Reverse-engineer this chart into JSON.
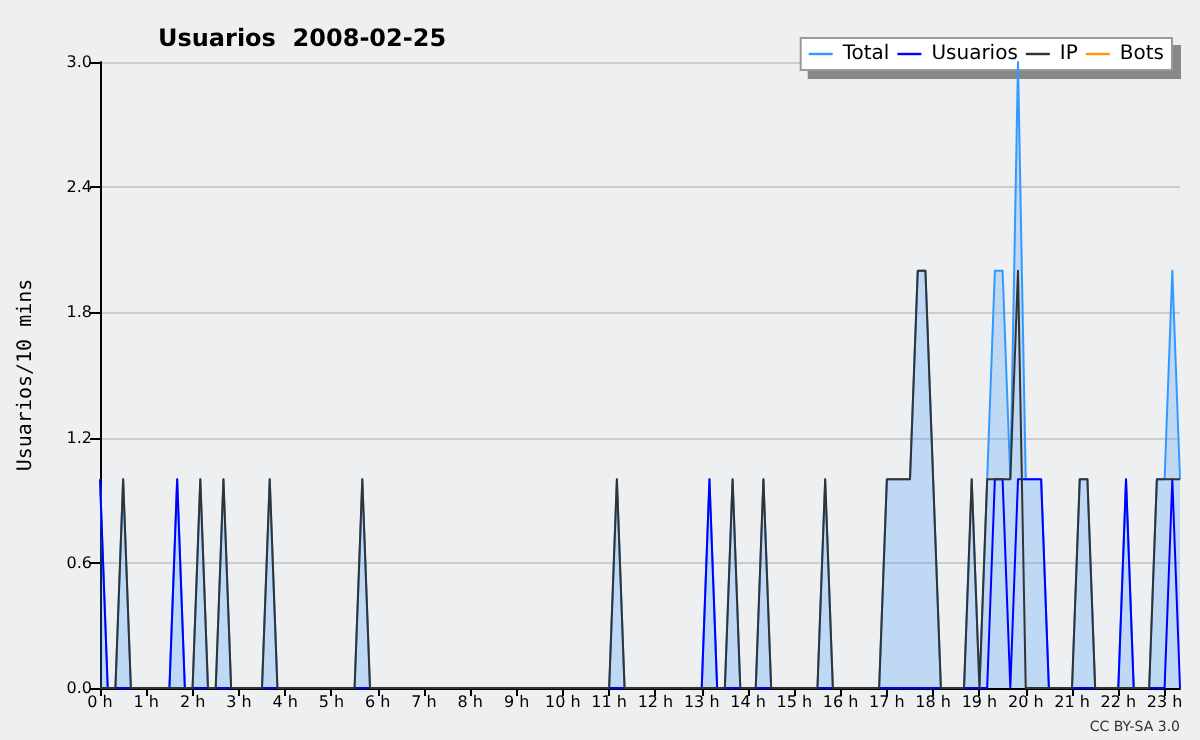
{
  "chart_data": {
    "type": "line",
    "title": "Usuarios  2008-02-25",
    "ylabel": "Usuarios/10 mins",
    "x": [
      0,
      0.167,
      0.333,
      0.5,
      0.667,
      0.833,
      1,
      1.167,
      1.333,
      1.5,
      1.667,
      1.833,
      2,
      2.167,
      2.333,
      2.5,
      2.667,
      2.833,
      3,
      3.167,
      3.333,
      3.5,
      3.667,
      3.833,
      4,
      4.167,
      4.333,
      4.5,
      4.667,
      4.833,
      5,
      5.167,
      5.333,
      5.5,
      5.667,
      5.833,
      6,
      6.167,
      6.333,
      6.5,
      6.667,
      6.833,
      7,
      7.167,
      7.333,
      7.5,
      7.667,
      7.833,
      8,
      8.167,
      8.333,
      8.5,
      8.667,
      8.833,
      9,
      9.167,
      9.333,
      9.5,
      9.667,
      9.833,
      10,
      10.167,
      10.333,
      10.5,
      10.667,
      10.833,
      11,
      11.167,
      11.333,
      11.5,
      11.667,
      11.833,
      12,
      12.167,
      12.333,
      12.5,
      12.667,
      12.833,
      13,
      13.167,
      13.333,
      13.5,
      13.667,
      13.833,
      14,
      14.167,
      14.333,
      14.5,
      14.667,
      14.833,
      15,
      15.167,
      15.333,
      15.5,
      15.667,
      15.833,
      16,
      16.167,
      16.333,
      16.5,
      16.667,
      16.833,
      17,
      17.167,
      17.333,
      17.5,
      17.667,
      17.833,
      18,
      18.167,
      18.333,
      18.5,
      18.667,
      18.833,
      19,
      19.167,
      19.333,
      19.5,
      19.667,
      19.833,
      20,
      20.167,
      20.333,
      20.5,
      20.667,
      20.833,
      21,
      21.167,
      21.333,
      21.5,
      21.667,
      21.833,
      22,
      22.167,
      22.333,
      22.5,
      22.667,
      22.833,
      23,
      23.167,
      23.333
    ],
    "series": [
      {
        "name": "Total",
        "type": "area",
        "color": "#3399ff",
        "values": [
          1,
          0,
          0,
          1,
          0,
          0,
          0,
          0,
          0,
          0,
          1,
          0,
          0,
          1,
          0,
          0,
          1,
          0,
          0,
          0,
          0,
          0,
          1,
          0,
          0,
          0,
          0,
          0,
          0,
          0,
          0,
          0,
          0,
          0,
          1,
          0,
          0,
          0,
          0,
          0,
          0,
          0,
          0,
          0,
          0,
          0,
          0,
          0,
          0,
          0,
          0,
          0,
          0,
          0,
          0,
          0,
          0,
          0,
          0,
          0,
          0,
          0,
          0,
          0,
          0,
          0,
          0,
          1,
          0,
          0,
          0,
          0,
          0,
          0,
          0,
          0,
          0,
          0,
          0,
          1,
          0,
          0,
          1,
          0,
          0,
          0,
          1,
          0,
          0,
          0,
          0,
          0,
          0,
          0,
          1,
          0,
          0,
          0,
          0,
          0,
          0,
          0,
          1,
          1,
          1,
          1,
          2,
          2,
          1,
          0,
          0,
          0,
          0,
          1,
          0,
          1,
          2,
          2,
          1,
          3,
          1,
          1,
          1,
          0,
          0,
          0,
          0,
          1,
          1,
          0,
          0,
          0,
          0,
          1,
          0,
          0,
          0,
          1,
          1,
          2,
          1
        ]
      },
      {
        "name": "Usuarios",
        "color": "#0000ff",
        "values": [
          1,
          0,
          0,
          0,
          0,
          0,
          0,
          0,
          0,
          0,
          1,
          0,
          0,
          0,
          0,
          0,
          0,
          0,
          0,
          0,
          0,
          0,
          0,
          0,
          0,
          0,
          0,
          0,
          0,
          0,
          0,
          0,
          0,
          0,
          0,
          0,
          0,
          0,
          0,
          0,
          0,
          0,
          0,
          0,
          0,
          0,
          0,
          0,
          0,
          0,
          0,
          0,
          0,
          0,
          0,
          0,
          0,
          0,
          0,
          0,
          0,
          0,
          0,
          0,
          0,
          0,
          0,
          0,
          0,
          0,
          0,
          0,
          0,
          0,
          0,
          0,
          0,
          0,
          0,
          1,
          0,
          0,
          0,
          0,
          0,
          0,
          0,
          0,
          0,
          0,
          0,
          0,
          0,
          0,
          0,
          0,
          0,
          0,
          0,
          0,
          0,
          0,
          0,
          0,
          0,
          0,
          0,
          0,
          0,
          0,
          0,
          0,
          0,
          0,
          0,
          0,
          1,
          1,
          0,
          1,
          1,
          1,
          1,
          0,
          0,
          0,
          0,
          0,
          0,
          0,
          0,
          0,
          0,
          1,
          0,
          0,
          0,
          0,
          0,
          1,
          0
        ]
      },
      {
        "name": "IP",
        "color": "#333333",
        "values": [
          0,
          0,
          0,
          1,
          0,
          0,
          0,
          0,
          0,
          0,
          0,
          0,
          0,
          1,
          0,
          0,
          1,
          0,
          0,
          0,
          0,
          0,
          1,
          0,
          0,
          0,
          0,
          0,
          0,
          0,
          0,
          0,
          0,
          0,
          1,
          0,
          0,
          0,
          0,
          0,
          0,
          0,
          0,
          0,
          0,
          0,
          0,
          0,
          0,
          0,
          0,
          0,
          0,
          0,
          0,
          0,
          0,
          0,
          0,
          0,
          0,
          0,
          0,
          0,
          0,
          0,
          0,
          1,
          0,
          0,
          0,
          0,
          0,
          0,
          0,
          0,
          0,
          0,
          0,
          0,
          0,
          0,
          1,
          0,
          0,
          0,
          1,
          0,
          0,
          0,
          0,
          0,
          0,
          0,
          1,
          0,
          0,
          0,
          0,
          0,
          0,
          0,
          1,
          1,
          1,
          1,
          2,
          2,
          1,
          0,
          0,
          0,
          0,
          1,
          0,
          1,
          1,
          1,
          1,
          2,
          0,
          0,
          0,
          0,
          0,
          0,
          0,
          1,
          1,
          0,
          0,
          0,
          0,
          0,
          0,
          0,
          0,
          1,
          1,
          1,
          1
        ]
      },
      {
        "name": "Bots",
        "color": "#ff9900",
        "values": [
          null,
          null,
          null,
          null,
          null,
          null,
          null,
          null,
          null,
          null,
          null,
          null,
          null,
          null,
          null,
          null,
          null,
          null,
          null,
          null,
          null,
          null,
          null,
          null,
          null,
          null,
          null,
          null,
          null,
          null,
          null,
          null,
          null,
          null,
          null,
          null,
          null,
          null,
          null,
          null,
          null,
          null,
          null,
          null,
          null,
          null,
          null,
          null,
          null,
          null,
          null,
          null,
          null,
          null,
          null,
          null,
          null,
          null,
          null,
          null,
          null,
          null,
          null,
          null,
          null,
          null,
          null,
          null,
          null,
          null,
          null,
          null,
          null,
          null,
          null,
          null,
          null,
          null,
          null,
          null,
          null,
          null,
          null,
          null,
          null,
          null,
          null,
          null,
          null,
          null,
          null,
          null,
          null,
          null,
          null,
          null,
          null,
          null,
          null,
          null,
          null,
          null,
          null,
          null,
          null,
          null,
          null,
          null,
          null,
          null,
          null,
          null,
          null,
          null,
          null,
          null,
          null,
          null,
          null,
          null,
          null,
          null,
          null,
          null,
          null,
          null,
          null,
          null,
          null,
          null,
          null,
          null,
          null,
          null,
          null,
          null,
          null,
          null,
          null,
          null,
          null
        ]
      }
    ],
    "xlim": [
      0,
      23.333
    ],
    "xticks": [
      {
        "value": 0,
        "label": "0 h"
      },
      {
        "value": 1,
        "label": "1 h"
      },
      {
        "value": 2,
        "label": "2 h"
      },
      {
        "value": 3,
        "label": "3 h"
      },
      {
        "value": 4,
        "label": "4 h"
      },
      {
        "value": 5,
        "label": "5 h"
      },
      {
        "value": 6,
        "label": "6 h"
      },
      {
        "value": 7,
        "label": "7 h"
      },
      {
        "value": 8,
        "label": "8 h"
      },
      {
        "value": 9,
        "label": "9 h"
      },
      {
        "value": 10,
        "label": "10 h"
      },
      {
        "value": 11,
        "label": "11 h"
      },
      {
        "value": 12,
        "label": "12 h"
      },
      {
        "value": 13,
        "label": "13 h"
      },
      {
        "value": 14,
        "label": "14 h"
      },
      {
        "value": 15,
        "label": "15 h"
      },
      {
        "value": 16,
        "label": "16 h"
      },
      {
        "value": 17,
        "label": "17 h"
      },
      {
        "value": 18,
        "label": "18 h"
      },
      {
        "value": 19,
        "label": "19 h"
      },
      {
        "value": 20,
        "label": "20 h"
      },
      {
        "value": 21,
        "label": "21 h"
      },
      {
        "value": 22,
        "label": "22 h"
      },
      {
        "value": 23,
        "label": "23 h"
      }
    ],
    "ylim": [
      0,
      3
    ],
    "yticks": [
      {
        "value": 0,
        "label": "0.0"
      },
      {
        "value": 0.6,
        "label": "0.6"
      },
      {
        "value": 1.2,
        "label": "1.2"
      },
      {
        "value": 1.8,
        "label": "1.8"
      },
      {
        "value": 2.4,
        "label": "2.4"
      },
      {
        "value": 3,
        "label": "3.0"
      }
    ],
    "grid": "y",
    "legend": "top right",
    "marker": "none",
    "line_style": "solid",
    "annotations": [
      "CC BY-SA 3.0"
    ]
  }
}
